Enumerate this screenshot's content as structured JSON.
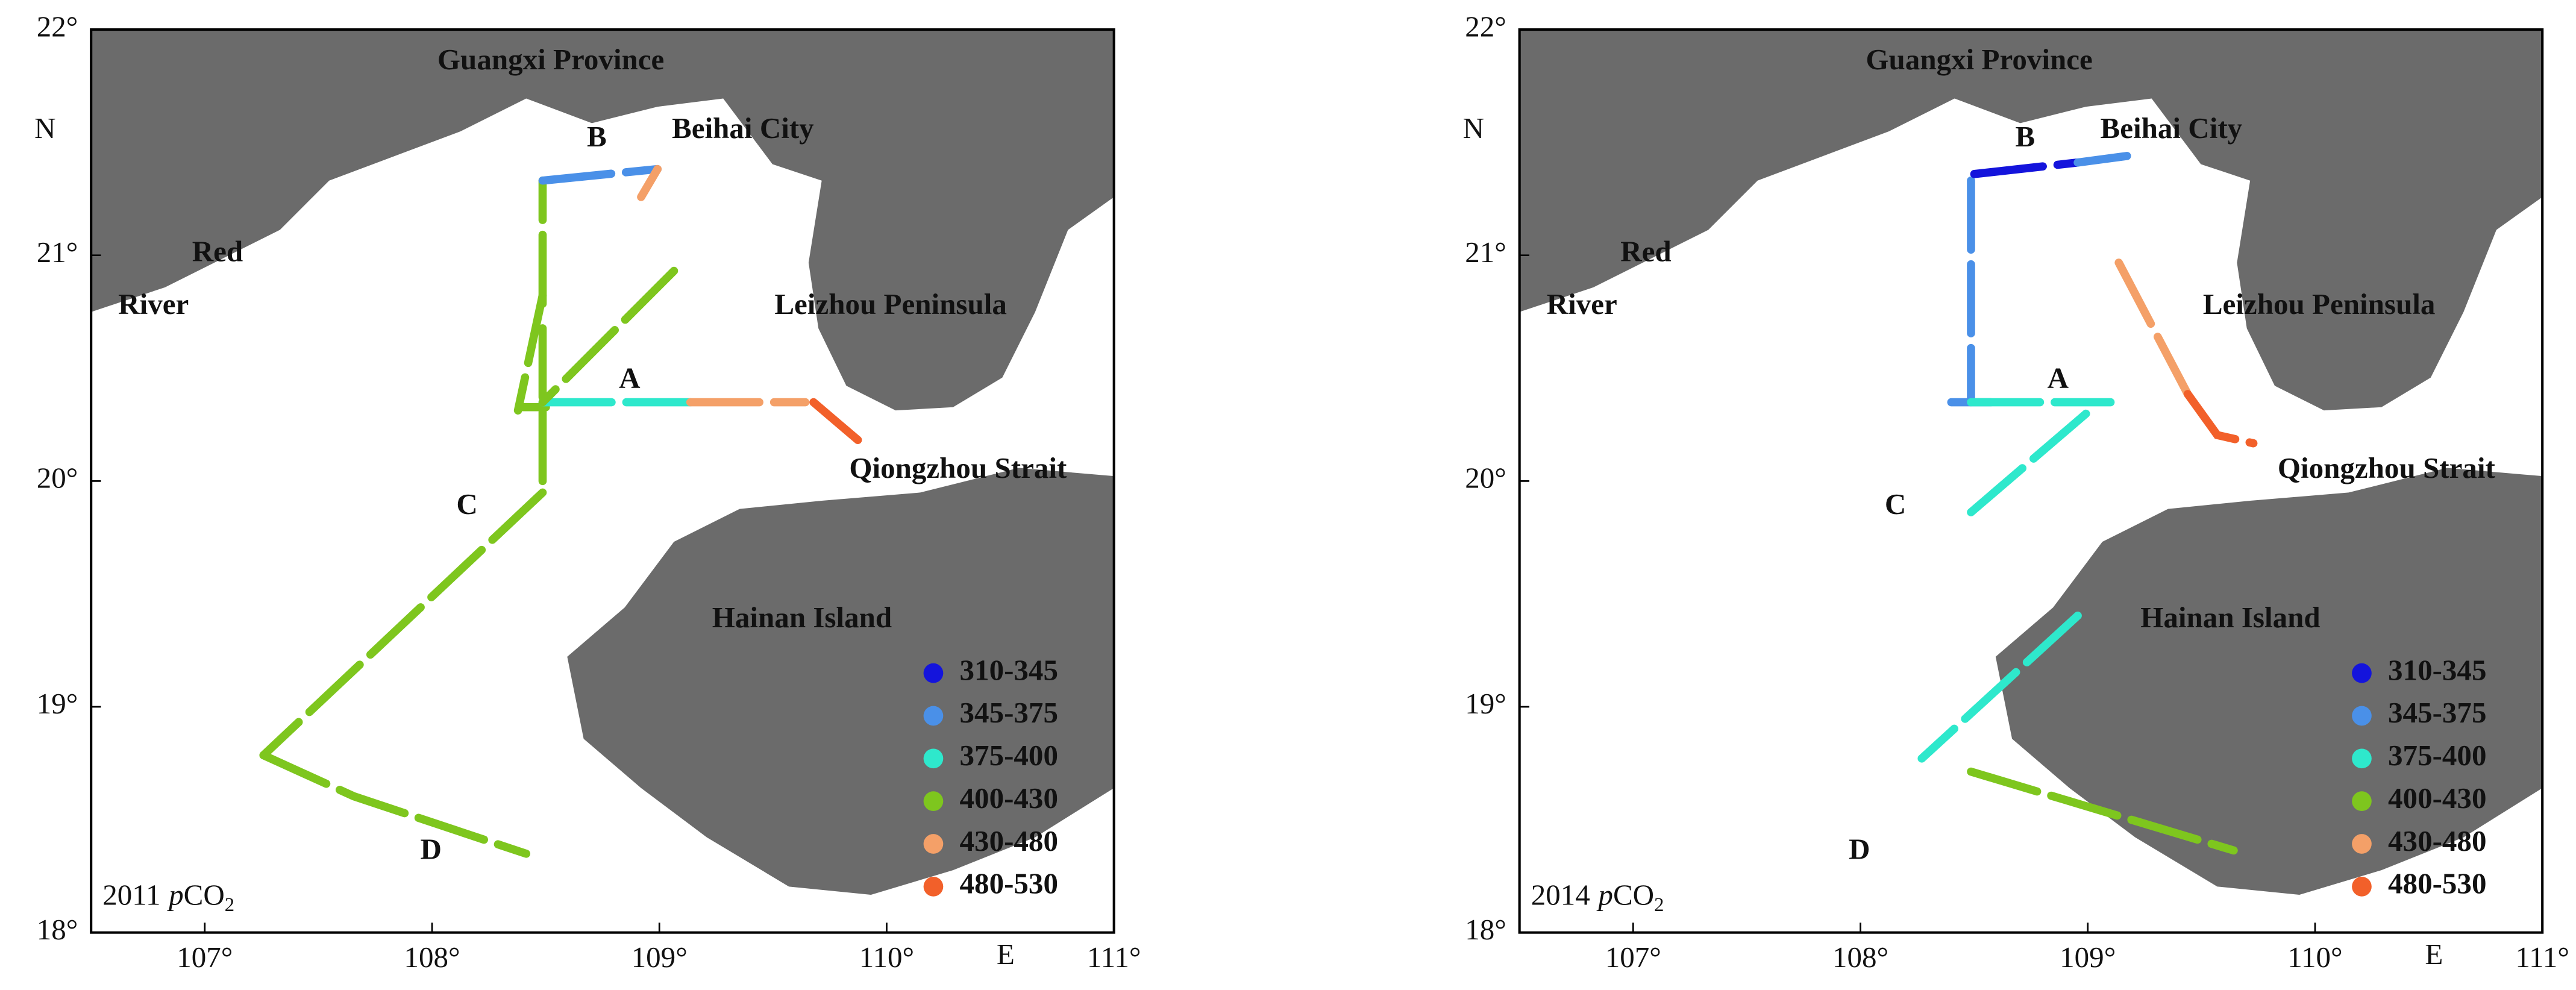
{
  "panels": [
    {
      "year": "2011",
      "variable": {
        "italic": "p",
        "base": "CO",
        "subscript": "2"
      },
      "places": {
        "guangxi": "Guangxi Province",
        "beihai": "Beihai City",
        "b": "B",
        "red": "Red",
        "river": "River",
        "leizhou": "Leizhou Peninsula",
        "a": "A",
        "qiongzhou": "Qiongzhou Strait",
        "c": "C",
        "hainan": "Hainan Island",
        "d": "D"
      },
      "legend": [
        {
          "label": "310-345",
          "color": "#1414dc"
        },
        {
          "label": "345-375",
          "color": "#4a90e8"
        },
        {
          "label": "375-400",
          "color": "#2ee8cc"
        },
        {
          "label": "400-430",
          "color": "#7ec61e"
        },
        {
          "label": "430-480",
          "color": "#f4a068"
        },
        {
          "label": "480-530",
          "color": "#f2602a"
        }
      ],
      "lat_range": [
        18,
        22
      ],
      "lon_range": [
        106.5,
        111
      ],
      "lat_ticks": [
        {
          "value": 18,
          "label": "18°"
        },
        {
          "value": 19,
          "label": "19°"
        },
        {
          "value": 20,
          "label": "20°"
        },
        {
          "value": 21,
          "label": "21°"
        },
        {
          "value": 22,
          "label": "22°"
        }
      ],
      "lon_ticks": [
        {
          "value": 107,
          "label": "107°"
        },
        {
          "value": 108,
          "label": "108°"
        },
        {
          "value": 109,
          "label": "109°"
        },
        {
          "value": 110,
          "label": "110°"
        },
        {
          "value": 111,
          "label": "111°"
        }
      ],
      "north": "N",
      "east": "E"
    },
    {
      "year": "2014",
      "variable": {
        "italic": "p",
        "base": "CO",
        "subscript": "2"
      },
      "places": {
        "guangxi": "Guangxi Province",
        "beihai": "Beihai City",
        "b": "B",
        "red": "Red",
        "river": "River",
        "leizhou": "Leizhou Peninsula",
        "a": "A",
        "qiongzhou": "Qiongzhou Strait",
        "c": "C",
        "hainan": "Hainan Island",
        "d": "D"
      },
      "legend": [
        {
          "label": "310-345",
          "color": "#1414dc"
        },
        {
          "label": "345-375",
          "color": "#4a90e8"
        },
        {
          "label": "375-400",
          "color": "#2ee8cc"
        },
        {
          "label": "400-430",
          "color": "#7ec61e"
        },
        {
          "label": "430-480",
          "color": "#f4a068"
        },
        {
          "label": "480-530",
          "color": "#f2602a"
        }
      ],
      "lat_range": [
        18,
        22
      ],
      "lon_range": [
        106.5,
        111
      ],
      "lat_ticks": [
        {
          "value": 18,
          "label": "18°"
        },
        {
          "value": 19,
          "label": "19°"
        },
        {
          "value": 20,
          "label": "20°"
        },
        {
          "value": 21,
          "label": "21°"
        },
        {
          "value": 22,
          "label": "22°"
        }
      ],
      "lon_ticks": [
        {
          "value": 107,
          "label": "107°"
        },
        {
          "value": 108,
          "label": "108°"
        },
        {
          "value": 109,
          "label": "109°"
        },
        {
          "value": 110,
          "label": "110°"
        },
        {
          "value": 111,
          "label": "111°"
        }
      ],
      "north": "N",
      "east": "E"
    }
  ]
}
